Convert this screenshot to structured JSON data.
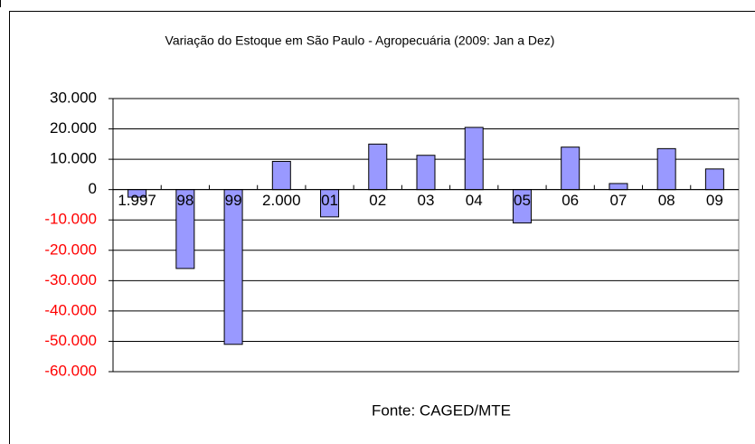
{
  "chart_data": {
    "type": "bar",
    "title": "Variação do Estoque em São Paulo - Agropecuária (2009: Jan a Dez)",
    "source": "Fonte: CAGED/MTE",
    "categories": [
      "1.997",
      "98",
      "99",
      "2.000",
      "01",
      "02",
      "03",
      "04",
      "05",
      "06",
      "07",
      "08",
      "09"
    ],
    "values": [
      -2500,
      -26000,
      -51000,
      9300,
      -9000,
      15000,
      11300,
      20500,
      -11000,
      14000,
      2000,
      13500,
      6800
    ],
    "color": "#9999ff",
    "negative_tick_color": "#ff0000",
    "ylim": [
      -60000,
      30000
    ],
    "yticks": [
      {
        "value": -60000,
        "label": "-60.000"
      },
      {
        "value": -50000,
        "label": "-50.000"
      },
      {
        "value": -40000,
        "label": "-40.000"
      },
      {
        "value": -30000,
        "label": "-30.000"
      },
      {
        "value": -20000,
        "label": "-20.000"
      },
      {
        "value": -10000,
        "label": "-10.000"
      },
      0,
      {
        "value": 10000,
        "label": "10.000"
      },
      {
        "value": 20000,
        "label": "20.000"
      },
      {
        "value": 30000,
        "label": "30.000"
      }
    ],
    "grid": true
  }
}
